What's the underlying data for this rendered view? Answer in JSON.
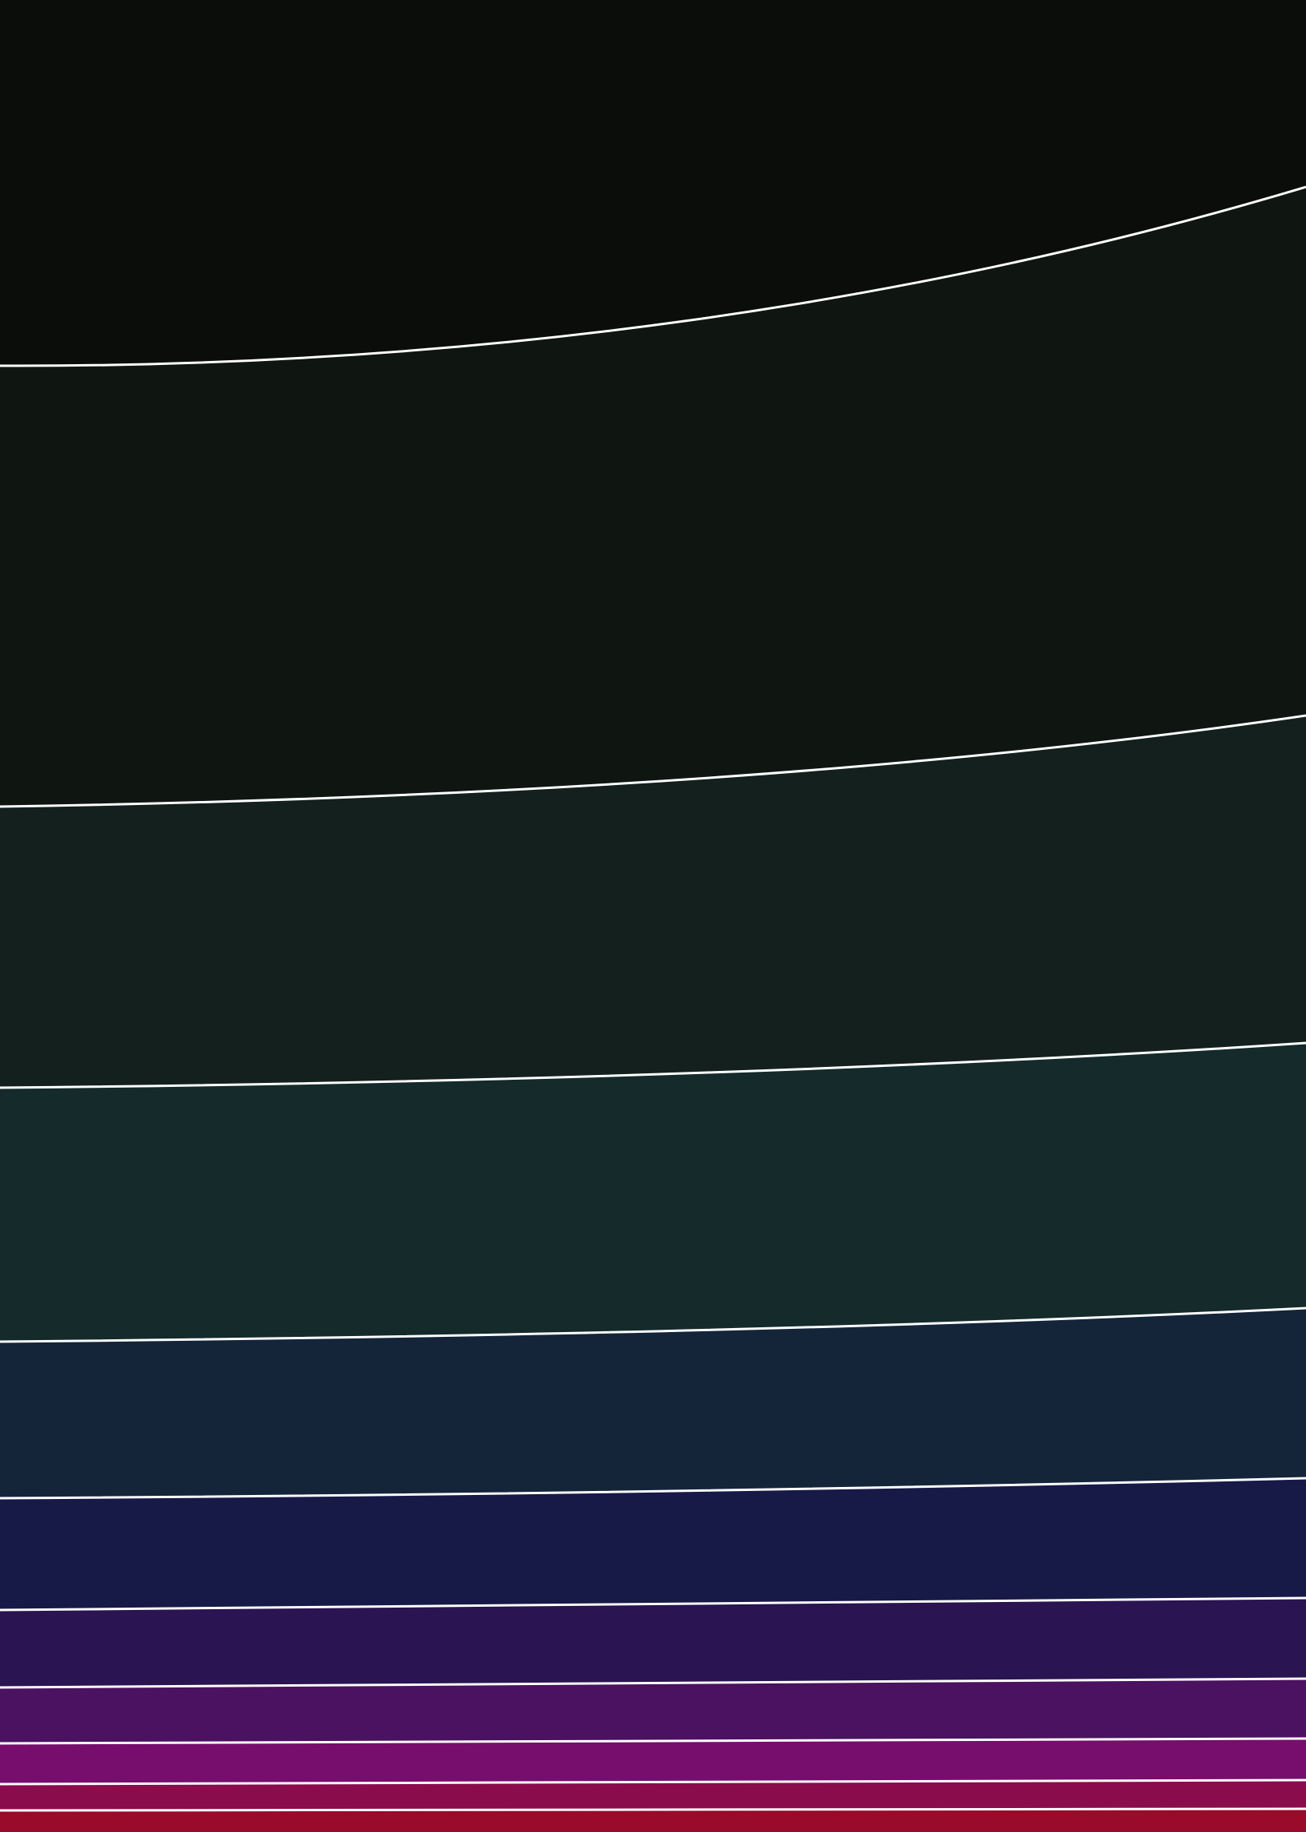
{
  "artwork": {
    "description_name": "layered-curved-bands",
    "line_color": "#ffffff",
    "bands": [
      {
        "name": "band-1",
        "color": "#0a0d0a"
      },
      {
        "name": "band-2",
        "color": "#0f1612"
      },
      {
        "name": "band-3",
        "color": "#13201e"
      },
      {
        "name": "band-4",
        "color": "#142a2b"
      },
      {
        "name": "band-5",
        "color": "#14253a"
      },
      {
        "name": "band-6",
        "color": "#171a47"
      },
      {
        "name": "band-7",
        "color": "#2a1452"
      },
      {
        "name": "band-8",
        "color": "#4a1260"
      },
      {
        "name": "band-9",
        "color": "#770e6d"
      },
      {
        "name": "band-10",
        "color": "#8a0c4d"
      },
      {
        "name": "band-11",
        "color": "#9a0a2a"
      }
    ]
  }
}
